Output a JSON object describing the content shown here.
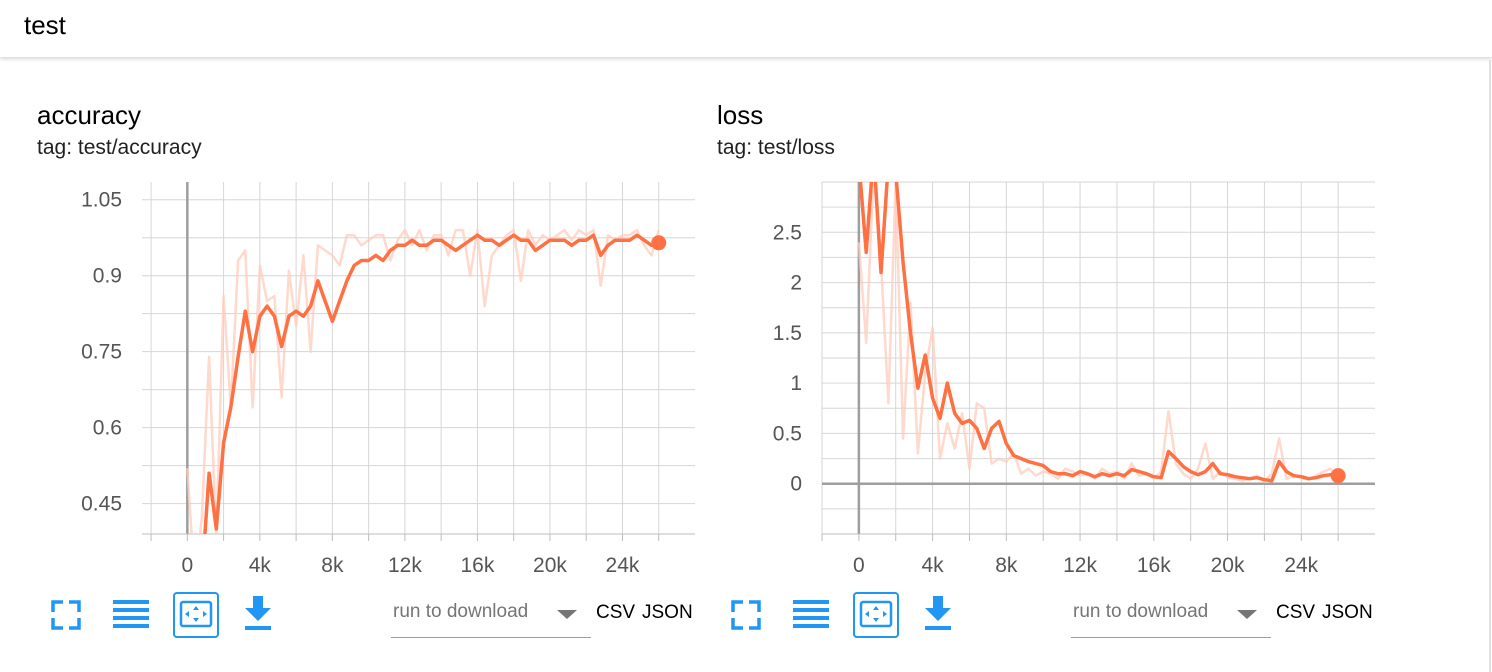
{
  "group": {
    "title": "test"
  },
  "toolbar_labels": {
    "run_placeholder": "run to download",
    "csv": "CSV",
    "json": "JSON"
  },
  "toolbar_icons": [
    "fullscreen-icon",
    "list-icon",
    "fit-domain-icon",
    "download-icon"
  ],
  "colors": {
    "accent": "#ff7043",
    "smoothed": "#ff7043",
    "raw": "#ffccbc",
    "icon": "#2196f3",
    "grid": "#d6d6d6",
    "axis": "#9e9e9e"
  },
  "chart_data": [
    {
      "type": "line",
      "title": "accuracy",
      "tag": "tag: test/accuracy",
      "xlim": [
        -2500,
        28000
      ],
      "ylim": [
        0.39,
        1.085
      ],
      "x_ticks": [
        0,
        4000,
        8000,
        12000,
        16000,
        20000,
        24000
      ],
      "x_tick_labels": [
        "0",
        "4k",
        "8k",
        "12k",
        "16k",
        "20k",
        "24k"
      ],
      "y_ticks": [
        0.45,
        0.6,
        0.75,
        0.9,
        1.05
      ],
      "y_tick_labels": [
        "0.45",
        "0.6",
        "0.75",
        "0.9",
        "1.05"
      ],
      "grid": true,
      "series": [
        {
          "style": "raw",
          "x": [
            0,
            400,
            800,
            1200,
            1600,
            2000,
            2400,
            2800,
            3200,
            3600,
            4000,
            4400,
            4800,
            5200,
            5600,
            6000,
            6400,
            6800,
            7200,
            7600,
            8000,
            8400,
            8800,
            9200,
            9600,
            10000,
            10400,
            10800,
            11200,
            11600,
            12000,
            12400,
            12800,
            13200,
            13600,
            14000,
            14400,
            14800,
            15200,
            15600,
            16000,
            16400,
            16800,
            17200,
            17600,
            18000,
            18400,
            18800,
            19200,
            19600,
            20000,
            20400,
            20800,
            21200,
            21600,
            22000,
            22400,
            22800,
            23200,
            23600,
            24000,
            24400,
            24800,
            25200,
            25600,
            26000
          ],
          "values": [
            0.52,
            0.3,
            0.42,
            0.74,
            0.38,
            0.86,
            0.64,
            0.93,
            0.95,
            0.64,
            0.92,
            0.85,
            0.86,
            0.66,
            0.91,
            0.8,
            0.94,
            0.75,
            0.96,
            0.95,
            0.94,
            0.92,
            0.98,
            0.98,
            0.96,
            0.97,
            0.98,
            0.98,
            0.93,
            0.97,
            0.99,
            0.96,
            0.99,
            0.95,
            0.98,
            0.98,
            0.94,
            0.99,
            0.99,
            0.9,
            0.99,
            0.84,
            0.94,
            0.96,
            0.98,
            0.99,
            0.89,
            0.99,
            0.96,
            0.98,
            0.97,
            0.98,
            0.99,
            0.97,
            0.99,
            0.98,
            0.99,
            0.88,
            0.98,
            0.97,
            0.98,
            0.98,
            0.99,
            0.96,
            0.94,
            0.99
          ]
        },
        {
          "style": "smoothed",
          "x": [
            0,
            400,
            800,
            1200,
            1600,
            2000,
            2400,
            2800,
            3200,
            3600,
            4000,
            4400,
            4800,
            5200,
            5600,
            6000,
            6400,
            6800,
            7200,
            7600,
            8000,
            8400,
            8800,
            9200,
            9600,
            10000,
            10400,
            10800,
            11200,
            11600,
            12000,
            12400,
            12800,
            13200,
            13600,
            14000,
            14400,
            14800,
            15200,
            15600,
            16000,
            16400,
            16800,
            17200,
            17600,
            18000,
            18400,
            18800,
            19200,
            19600,
            20000,
            20400,
            20800,
            21200,
            21600,
            22000,
            22400,
            22800,
            23200,
            23600,
            24000,
            24400,
            24800,
            25200,
            25600,
            26000
          ],
          "values": [
            0.39,
            0.22,
            0.3,
            0.51,
            0.4,
            0.57,
            0.64,
            0.74,
            0.83,
            0.75,
            0.82,
            0.84,
            0.82,
            0.76,
            0.82,
            0.83,
            0.82,
            0.84,
            0.89,
            0.85,
            0.81,
            0.85,
            0.89,
            0.92,
            0.93,
            0.93,
            0.94,
            0.93,
            0.95,
            0.96,
            0.96,
            0.97,
            0.96,
            0.96,
            0.97,
            0.97,
            0.96,
            0.95,
            0.96,
            0.97,
            0.98,
            0.97,
            0.97,
            0.96,
            0.97,
            0.98,
            0.97,
            0.97,
            0.95,
            0.96,
            0.97,
            0.97,
            0.97,
            0.96,
            0.97,
            0.97,
            0.98,
            0.94,
            0.96,
            0.97,
            0.97,
            0.97,
            0.98,
            0.97,
            0.96,
            0.965
          ]
        }
      ],
      "last_point": {
        "x": 26000,
        "y": 0.965
      }
    },
    {
      "type": "line",
      "title": "loss",
      "tag": "tag: test/loss",
      "xlim": [
        -2000,
        28000
      ],
      "ylim": [
        -0.5,
        3.0
      ],
      "x_ticks": [
        0,
        4000,
        8000,
        12000,
        16000,
        20000,
        24000
      ],
      "x_tick_labels": [
        "0",
        "4k",
        "8k",
        "12k",
        "16k",
        "20k",
        "24k"
      ],
      "y_ticks": [
        0,
        0.5,
        1,
        1.5,
        2,
        2.5
      ],
      "y_tick_labels": [
        "0",
        "0.5",
        "1",
        "1.5",
        "2",
        "2.5"
      ],
      "grid": true,
      "series": [
        {
          "style": "raw",
          "x": [
            0,
            400,
            800,
            1200,
            1600,
            2000,
            2400,
            2800,
            3200,
            3600,
            4000,
            4400,
            4800,
            5200,
            5600,
            6000,
            6400,
            6800,
            7200,
            7600,
            8000,
            8400,
            8800,
            9200,
            9600,
            10000,
            10400,
            10800,
            11200,
            11600,
            12000,
            12400,
            12800,
            13200,
            13600,
            14000,
            14400,
            14800,
            15200,
            15600,
            16000,
            16400,
            16800,
            17200,
            17600,
            18000,
            18400,
            18800,
            19200,
            19600,
            20000,
            20400,
            20800,
            21200,
            21600,
            22000,
            22400,
            22800,
            23200,
            23600,
            24000,
            24400,
            24800,
            25200,
            25600,
            26000
          ],
          "values": [
            2.4,
            1.4,
            3.1,
            2.2,
            0.8,
            3.0,
            0.45,
            1.8,
            0.3,
            1.1,
            1.55,
            0.25,
            0.6,
            0.35,
            0.7,
            0.15,
            0.8,
            0.75,
            0.2,
            0.25,
            0.22,
            0.3,
            0.1,
            0.15,
            0.08,
            0.12,
            0.1,
            0.05,
            0.15,
            0.12,
            0.08,
            0.1,
            0.05,
            0.15,
            0.1,
            0.12,
            0.05,
            0.2,
            0.08,
            0.1,
            0.05,
            0.12,
            0.72,
            0.2,
            0.1,
            0.05,
            0.15,
            0.4,
            0.05,
            0.12,
            0.06,
            0.05,
            0.03,
            0.05,
            0.08,
            0.02,
            0.1,
            0.45,
            0.05,
            0.08,
            0.06,
            0.04,
            0.08,
            0.12,
            0.15,
            0.06
          ]
        },
        {
          "style": "smoothed",
          "x": [
            0,
            400,
            800,
            1200,
            1600,
            2000,
            2400,
            2800,
            3200,
            3600,
            4000,
            4400,
            4800,
            5200,
            5600,
            6000,
            6400,
            6800,
            7200,
            7600,
            8000,
            8400,
            8800,
            9200,
            9600,
            10000,
            10400,
            10800,
            11200,
            11600,
            12000,
            12400,
            12800,
            13200,
            13600,
            14000,
            14400,
            14800,
            15200,
            15600,
            16000,
            16400,
            16800,
            17200,
            17600,
            18000,
            18400,
            18800,
            19200,
            19600,
            20000,
            20400,
            20800,
            21200,
            21600,
            22000,
            22400,
            22800,
            23200,
            23600,
            24000,
            24400,
            24800,
            25200,
            25600,
            26000
          ],
          "values": [
            3.2,
            2.3,
            3.3,
            2.1,
            3.2,
            3.1,
            2.2,
            1.5,
            0.95,
            1.28,
            0.85,
            0.65,
            1.0,
            0.7,
            0.6,
            0.63,
            0.55,
            0.35,
            0.55,
            0.62,
            0.4,
            0.28,
            0.25,
            0.22,
            0.2,
            0.18,
            0.12,
            0.1,
            0.1,
            0.08,
            0.12,
            0.1,
            0.07,
            0.1,
            0.08,
            0.1,
            0.08,
            0.14,
            0.12,
            0.1,
            0.07,
            0.06,
            0.32,
            0.25,
            0.17,
            0.12,
            0.09,
            0.12,
            0.2,
            0.1,
            0.09,
            0.07,
            0.06,
            0.05,
            0.06,
            0.04,
            0.03,
            0.22,
            0.12,
            0.08,
            0.07,
            0.05,
            0.06,
            0.08,
            0.09,
            0.08
          ]
        }
      ],
      "last_point": {
        "x": 26000,
        "y": 0.08
      }
    }
  ]
}
